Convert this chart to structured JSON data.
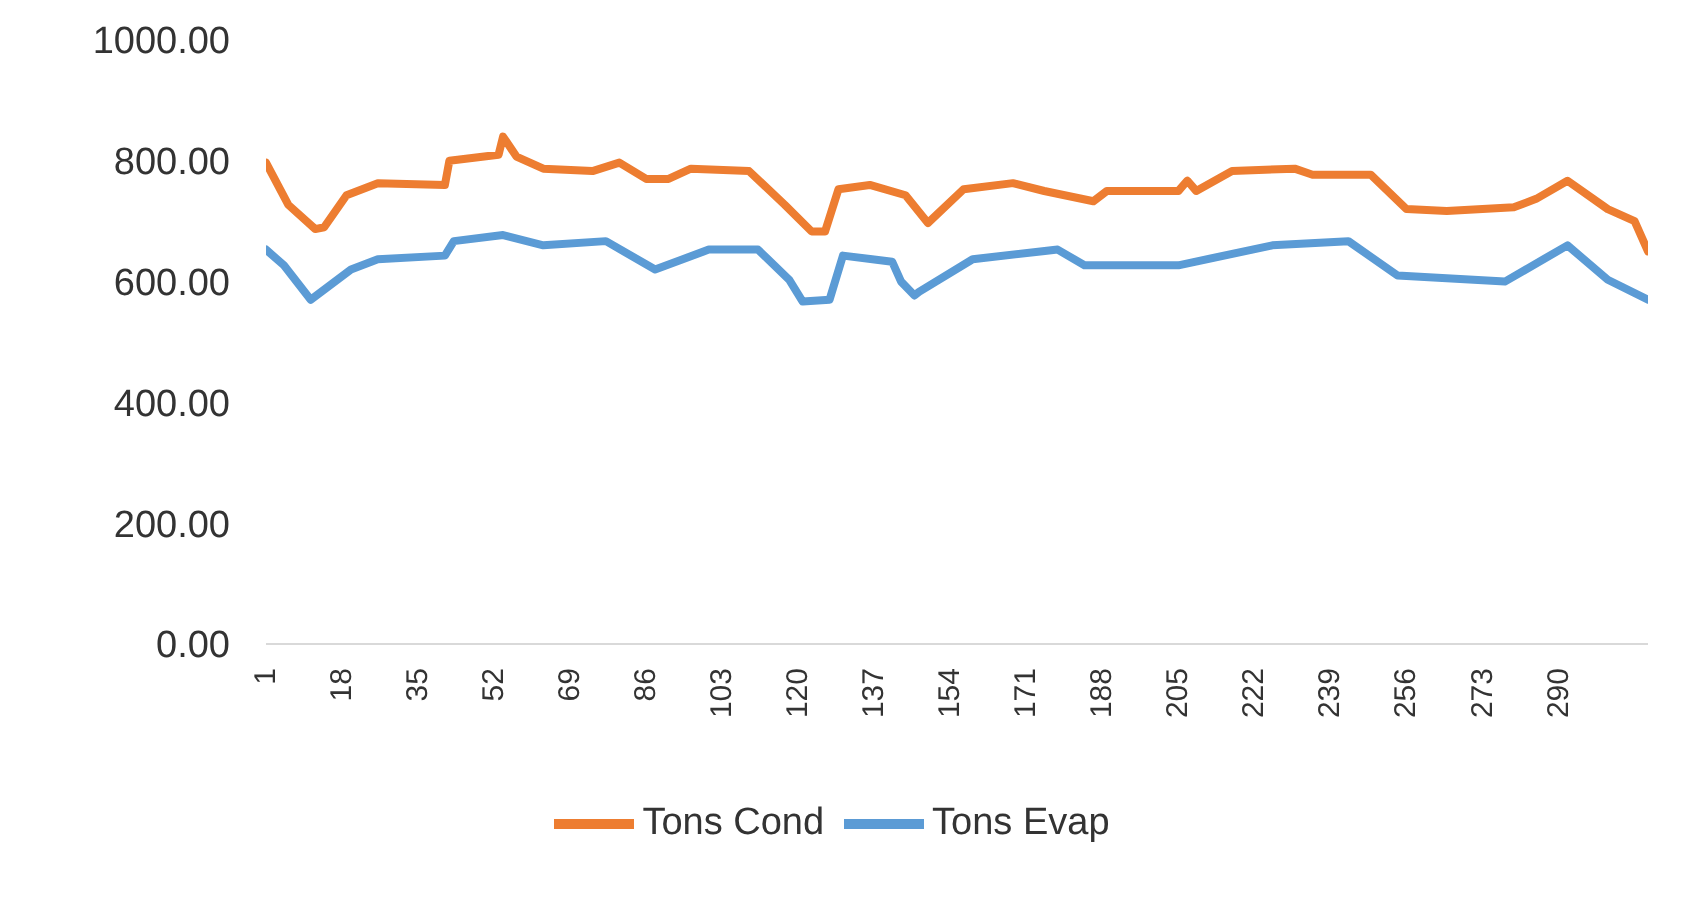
{
  "chart_data": {
    "type": "line",
    "xlim": [
      1,
      310
    ],
    "xticks": [
      1,
      18,
      35,
      52,
      69,
      86,
      103,
      120,
      137,
      154,
      171,
      188,
      205,
      222,
      239,
      256,
      273,
      290
    ],
    "ylim": [
      0,
      1000
    ],
    "yticks": [
      {
        "value": 0,
        "label": "0.00"
      },
      {
        "value": 200,
        "label": "200.00"
      },
      {
        "value": 400,
        "label": "400.00"
      },
      {
        "value": 600,
        "label": "600.00"
      },
      {
        "value": 800,
        "label": "800.00"
      },
      {
        "value": 1000,
        "label": "1000.00"
      }
    ],
    "grid": false,
    "legend": "bottom",
    "marker": "none",
    "line_style": "solid",
    "series": [
      {
        "name": "Tons Evap",
        "color": "#5b9bd5",
        "x": [
          1,
          5,
          11,
          20,
          26,
          41,
          43,
          54,
          63,
          77,
          88,
          100,
          111,
          118,
          121,
          127,
          130,
          141,
          143,
          146,
          147,
          159,
          178,
          184,
          205,
          226,
          243,
          254,
          278,
          292,
          301,
          310
        ],
        "values": [
          653,
          627,
          570,
          620,
          637,
          643,
          667,
          677,
          660,
          667,
          620,
          653,
          653,
          603,
          567,
          570,
          643,
          633,
          600,
          577,
          583,
          637,
          653,
          627,
          627,
          660,
          667,
          610,
          600,
          660,
          603,
          570
        ]
      },
      {
        "name": "Tons Cond",
        "color": "#ed7d31",
        "x": [
          1,
          6,
          12,
          14,
          19,
          26,
          41,
          42,
          53,
          54,
          57,
          63,
          74,
          80,
          86,
          91,
          96,
          109,
          117,
          123,
          126,
          129,
          136,
          144,
          149,
          157,
          168,
          175,
          186,
          189,
          205,
          207,
          209,
          217,
          231,
          235,
          248,
          256,
          265,
          280,
          285,
          292,
          301,
          307,
          310
        ],
        "values": [
          797,
          727,
          687,
          690,
          743,
          763,
          760,
          800,
          810,
          840,
          807,
          787,
          783,
          797,
          770,
          770,
          787,
          783,
          727,
          683,
          683,
          753,
          760,
          743,
          697,
          753,
          763,
          750,
          733,
          750,
          750,
          767,
          750,
          783,
          787,
          777,
          777,
          720,
          717,
          723,
          737,
          767,
          720,
          700,
          650
        ]
      }
    ]
  }
}
